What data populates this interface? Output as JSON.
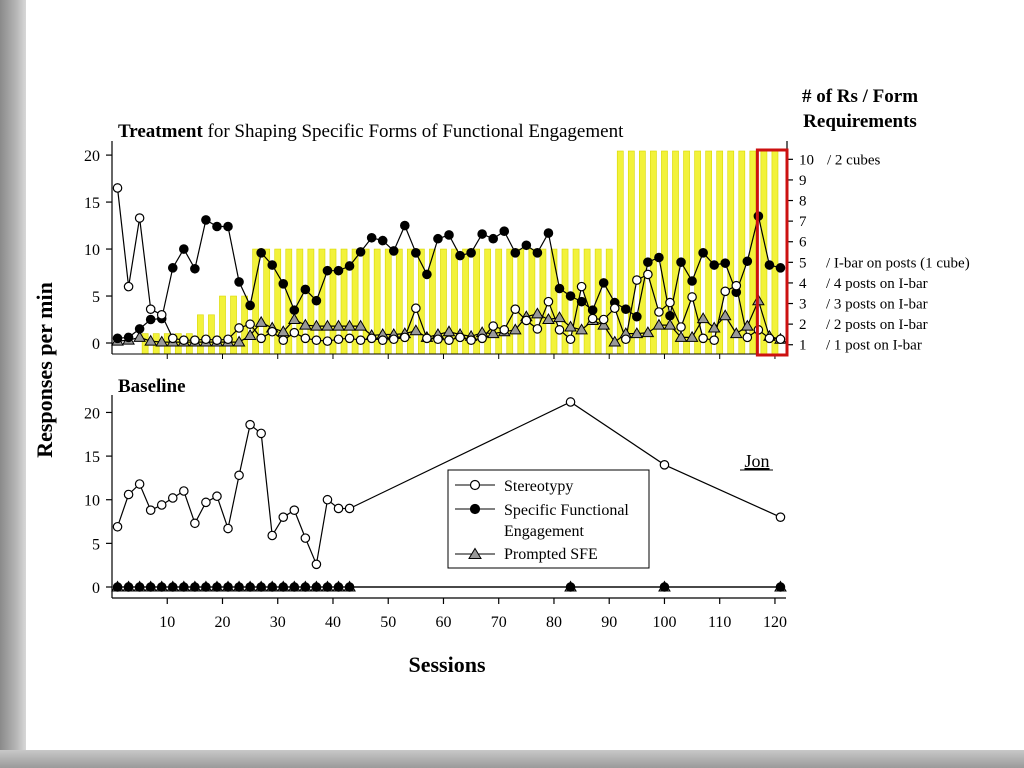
{
  "colors": {
    "background": "#ffffff",
    "phase_bar": "#f2f23a",
    "phase_bar_edge": "#d8d800",
    "prompted_fill": "#999999",
    "highlight_box": "#cc1111"
  },
  "chart_data": {
    "type": "line",
    "ylabel": "Responses per min",
    "xlabel": "Sessions",
    "xlim": [
      0,
      122
    ],
    "x_ticks": [
      10,
      20,
      30,
      40,
      50,
      60,
      70,
      80,
      90,
      100,
      110,
      120
    ],
    "participant": "Jon",
    "legend": {
      "placement": "lower-center",
      "entries": [
        "Stereotypy",
        "Specific Functional",
        "Engagement",
        "Prompted SFE"
      ]
    },
    "panels": [
      {
        "id": "treatment",
        "title_bold": "Treatment",
        "title_rest": " for Shaping Specific Forms of Functional Engagement",
        "ylim": [
          0,
          21.5
        ],
        "y_ticks": [
          0,
          5,
          10,
          15,
          20
        ],
        "right_axis": {
          "title_line1": "# of Rs / Form",
          "title_line2": "Requirements",
          "levels": [
            1,
            2,
            3,
            4,
            5,
            6,
            7,
            8,
            9,
            10
          ],
          "level_labels": [
            {
              "level": 10,
              "text": "/  2 cubes"
            },
            {
              "level": 5,
              "text": "/  I-bar on posts (1 cube)"
            },
            {
              "level": 4,
              "text": "/  4 posts on I-bar"
            },
            {
              "level": 3,
              "text": "/  3 posts on I-bar"
            },
            {
              "level": 2,
              "text": "/  2 posts on I-bar"
            },
            {
              "level": 1,
              "text": "/  1 post on I-bar"
            }
          ]
        },
        "highlight_sessions": [
          117,
          122
        ],
        "criterion_bars": {
          "x": [
            6,
            8,
            10,
            12,
            14,
            16,
            18,
            20,
            22,
            24,
            26,
            28,
            30,
            32,
            34,
            36,
            38,
            40,
            42,
            44,
            46,
            48,
            50,
            52,
            54,
            56,
            58,
            60,
            62,
            64,
            66,
            68,
            70,
            72,
            74,
            76,
            78,
            80,
            82,
            84,
            86,
            88,
            90,
            92,
            94,
            96,
            98,
            100,
            102,
            104,
            106,
            108,
            110,
            112,
            114,
            116,
            118,
            120
          ],
          "values": [
            1,
            1,
            1,
            1,
            1,
            3,
            3,
            5,
            5,
            5,
            10,
            10,
            10,
            10,
            10,
            10,
            10,
            10,
            10,
            10,
            10,
            10,
            10,
            10,
            10,
            10,
            10,
            10,
            10,
            10,
            10,
            10,
            10,
            10,
            10,
            10,
            10,
            10,
            10,
            10,
            10,
            10,
            10,
            21,
            21,
            21,
            21,
            21,
            21,
            21,
            21,
            21,
            21,
            21,
            21,
            21,
            21,
            21
          ]
        },
        "series": [
          {
            "name": "Stereotypy",
            "marker": "open-circle",
            "x": [
              1,
              3,
              5,
              7,
              9,
              11,
              13,
              15,
              17,
              19,
              21,
              23,
              25,
              27,
              29,
              31,
              33,
              35,
              37,
              39,
              41,
              43,
              45,
              47,
              49,
              51,
              53,
              55,
              57,
              59,
              61,
              63,
              65,
              67,
              69,
              71,
              73,
              75,
              77,
              79,
              81,
              83,
              85,
              87,
              89,
              91,
              93,
              95,
              97,
              99,
              101,
              103,
              105,
              107,
              109,
              111,
              113,
              115,
              117,
              119,
              121
            ],
            "values": [
              16.5,
              6,
              13.3,
              3.6,
              3,
              0.5,
              0.3,
              0.3,
              0.4,
              0.3,
              0.4,
              1.6,
              2,
              0.5,
              1.2,
              0.3,
              1.1,
              0.5,
              0.3,
              0.2,
              0.4,
              0.5,
              0.3,
              0.5,
              0.3,
              0.4,
              0.6,
              3.7,
              0.5,
              0.4,
              0.3,
              0.6,
              0.3,
              0.5,
              1.8,
              1.4,
              3.6,
              2.4,
              1.5,
              4.4,
              1.4,
              0.4,
              6,
              2.6,
              2.5,
              3.7,
              0.4,
              6.7,
              7.3,
              3.3,
              4.3,
              1.7,
              4.9,
              0.5,
              0.3,
              5.5,
              6.1,
              0.6,
              1.4,
              0.5,
              0.4
            ]
          },
          {
            "name": "Specific Functional Engagement",
            "marker": "filled-circle",
            "x": [
              1,
              3,
              5,
              7,
              9,
              11,
              13,
              15,
              17,
              19,
              21,
              23,
              25,
              27,
              29,
              31,
              33,
              35,
              37,
              39,
              41,
              43,
              45,
              47,
              49,
              51,
              53,
              55,
              57,
              59,
              61,
              63,
              65,
              67,
              69,
              71,
              73,
              75,
              77,
              79,
              81,
              83,
              85,
              87,
              89,
              91,
              93,
              95,
              97,
              99,
              101,
              103,
              105,
              107,
              109,
              111,
              113,
              115,
              117,
              119,
              121
            ],
            "values": [
              0.5,
              0.6,
              1.5,
              2.5,
              2.6,
              8,
              10,
              7.9,
              13.1,
              12.4,
              12.4,
              6.5,
              4,
              9.6,
              8.3,
              6.3,
              3.5,
              5.7,
              4.5,
              7.7,
              7.7,
              8.2,
              9.7,
              11.2,
              10.9,
              9.8,
              12.5,
              9.6,
              7.3,
              11.1,
              11.5,
              9.3,
              9.6,
              11.6,
              11.1,
              11.9,
              9.6,
              10.4,
              9.6,
              11.7,
              5.8,
              5,
              4.4,
              3.5,
              6.4,
              4.3,
              3.6,
              2.8,
              8.6,
              9.1,
              2.9,
              8.6,
              6.6,
              9.6,
              8.3,
              8.5,
              5.4,
              8.7,
              13.5,
              8.3,
              8
            ]
          },
          {
            "name": "Prompted SFE",
            "marker": "gray-triangle",
            "x": [
              1,
              3,
              5,
              7,
              9,
              11,
              13,
              15,
              17,
              19,
              21,
              23,
              25,
              27,
              29,
              31,
              33,
              35,
              37,
              39,
              41,
              43,
              45,
              47,
              49,
              51,
              53,
              55,
              57,
              59,
              61,
              63,
              65,
              67,
              69,
              71,
              73,
              75,
              77,
              79,
              81,
              83,
              85,
              87,
              89,
              91,
              93,
              95,
              97,
              99,
              101,
              103,
              105,
              107,
              109,
              111,
              113,
              115,
              117,
              119,
              121
            ],
            "values": [
              0.2,
              0.3,
              0.6,
              0.2,
              0.1,
              0.1,
              0.1,
              0.1,
              0.1,
              0.1,
              0.1,
              0.1,
              0.8,
              2.2,
              1.6,
              1.2,
              2.5,
              1.9,
              1.8,
              1.8,
              1.8,
              1.8,
              1.8,
              0.8,
              0.9,
              0.9,
              1,
              1.3,
              0.6,
              0.9,
              1.2,
              0.9,
              0.7,
              1.1,
              1,
              1.2,
              1.4,
              2.8,
              3.1,
              2.5,
              2.7,
              1.7,
              1.4,
              2.4,
              1.9,
              0.1,
              1,
              1,
              1.1,
              1.9,
              1.9,
              0.6,
              0.6,
              2.6,
              1.6,
              2.9,
              1,
              1.8,
              4.5,
              0.7,
              0.4
            ]
          }
        ]
      },
      {
        "id": "baseline",
        "title": "Baseline",
        "ylim": [
          0,
          22
        ],
        "y_ticks": [
          0,
          5,
          10,
          15,
          20
        ],
        "series": [
          {
            "name": "Stereotypy",
            "marker": "open-circle",
            "x": [
              1,
              3,
              5,
              7,
              9,
              11,
              13,
              15,
              17,
              19,
              21,
              23,
              25,
              27,
              29,
              31,
              33,
              35,
              37,
              39,
              41,
              43,
              83,
              100,
              121
            ],
            "values": [
              6.9,
              10.6,
              11.8,
              8.8,
              9.4,
              10.2,
              11,
              7.3,
              9.7,
              10.4,
              6.7,
              12.8,
              18.6,
              17.6,
              5.9,
              8,
              8.8,
              5.6,
              2.6,
              10,
              9,
              9,
              21.2,
              14,
              8
            ]
          },
          {
            "name": "Specific Functional Engagement",
            "marker": "filled-circle",
            "x": [
              1,
              3,
              5,
              7,
              9,
              11,
              13,
              15,
              17,
              19,
              21,
              23,
              25,
              27,
              29,
              31,
              33,
              35,
              37,
              39,
              41,
              43,
              83,
              100,
              121
            ],
            "values": [
              0,
              0,
              0,
              0,
              0,
              0,
              0,
              0,
              0,
              0,
              0,
              0,
              0,
              0,
              0,
              0,
              0,
              0,
              0,
              0,
              0,
              0,
              0,
              0,
              0
            ]
          },
          {
            "name": "Prompted SFE",
            "marker": "gray-triangle",
            "x": [
              1,
              3,
              5,
              7,
              9,
              11,
              13,
              15,
              17,
              19,
              21,
              23,
              25,
              27,
              29,
              31,
              33,
              35,
              37,
              39,
              41,
              43,
              83,
              100,
              121
            ],
            "values": [
              0,
              0,
              0,
              0,
              0,
              0,
              0,
              0,
              0,
              0,
              0,
              0,
              0,
              0,
              0,
              0,
              0,
              0,
              0,
              0,
              0,
              0,
              0,
              0,
              0
            ]
          }
        ]
      }
    ]
  }
}
